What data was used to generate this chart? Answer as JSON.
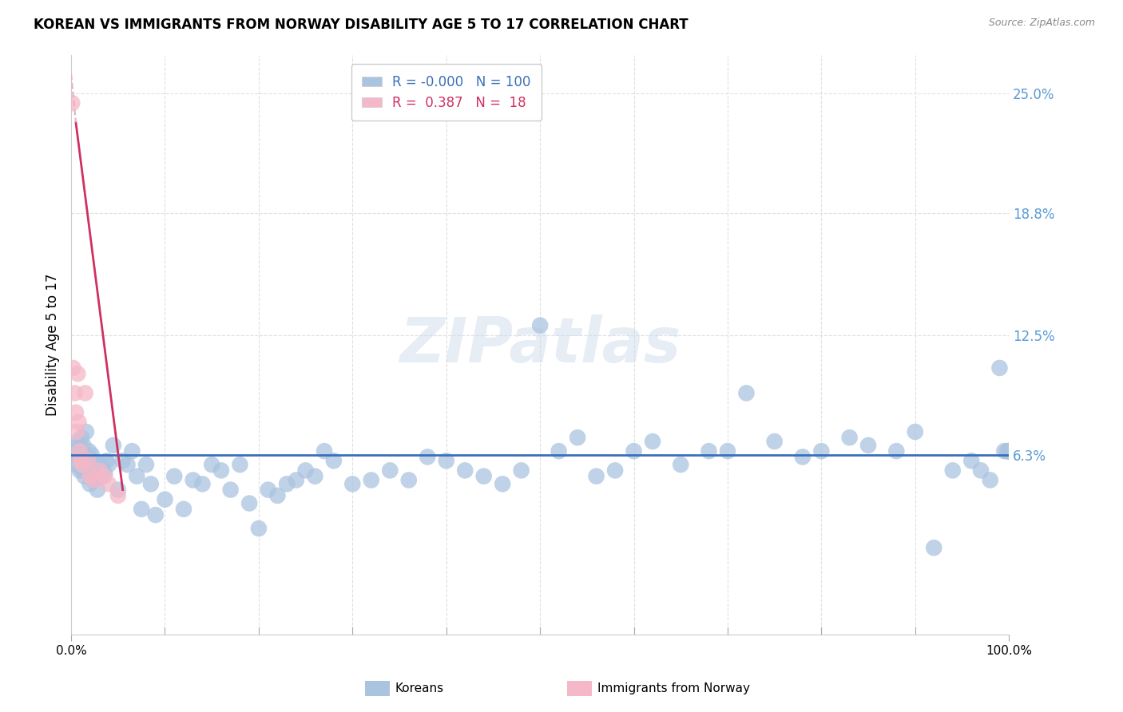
{
  "title": "KOREAN VS IMMIGRANTS FROM NORWAY DISABILITY AGE 5 TO 17 CORRELATION CHART",
  "source": "Source: ZipAtlas.com",
  "ylabel": "Disability Age 5 to 17",
  "xlim": [
    0,
    100
  ],
  "ylim": [
    -3,
    27
  ],
  "yticks": [
    6.3,
    12.5,
    18.8,
    25.0
  ],
  "yticklabels": [
    "6.3%",
    "12.5%",
    "18.8%",
    "25.0%"
  ],
  "blue_line_y": 6.3,
  "koreans_R": -0.0,
  "koreans_N": 100,
  "norway_R": 0.387,
  "norway_N": 18,
  "blue_color": "#aac4e0",
  "pink_color": "#f5b8c8",
  "blue_line_color": "#3a6fba",
  "pink_line_color": "#d03060",
  "pink_dash_color": "#e8b0c0",
  "background_color": "#ffffff",
  "grid_color": "#e0e0e0",
  "watermark": "ZIPatlas",
  "koreans_x": [
    0.3,
    0.5,
    0.6,
    0.7,
    0.8,
    0.9,
    1.0,
    1.1,
    1.2,
    1.3,
    1.4,
    1.5,
    1.6,
    1.7,
    1.8,
    1.9,
    2.0,
    2.1,
    2.2,
    2.4,
    2.6,
    2.8,
    3.0,
    3.2,
    3.4,
    3.6,
    3.8,
    4.0,
    4.5,
    5.0,
    5.5,
    6.0,
    6.5,
    7.0,
    7.5,
    8.0,
    8.5,
    9.0,
    10.0,
    11.0,
    12.0,
    13.0,
    14.0,
    15.0,
    16.0,
    17.0,
    18.0,
    19.0,
    20.0,
    21.0,
    22.0,
    23.0,
    24.0,
    25.0,
    26.0,
    27.0,
    28.0,
    30.0,
    32.0,
    34.0,
    36.0,
    38.0,
    40.0,
    42.0,
    44.0,
    46.0,
    48.0,
    50.0,
    52.0,
    54.0,
    56.0,
    58.0,
    60.0,
    62.0,
    65.0,
    68.0,
    70.0,
    72.0,
    75.0,
    78.0,
    80.0,
    83.0,
    85.0,
    88.0,
    90.0,
    92.0,
    94.0,
    96.0,
    97.0,
    98.0,
    99.0,
    99.5,
    99.8,
    100.0,
    100.0,
    100.0,
    100.0,
    100.0,
    100.0,
    100.0
  ],
  "koreans_y": [
    6.2,
    5.8,
    6.5,
    7.0,
    6.8,
    5.5,
    6.3,
    7.2,
    5.5,
    6.8,
    5.2,
    6.0,
    7.5,
    6.2,
    5.8,
    6.5,
    4.8,
    5.5,
    6.3,
    5.0,
    5.8,
    4.5,
    5.2,
    5.8,
    5.5,
    5.3,
    6.0,
    5.8,
    6.8,
    4.5,
    6.0,
    5.8,
    6.5,
    5.2,
    3.5,
    5.8,
    4.8,
    3.2,
    4.0,
    5.2,
    3.5,
    5.0,
    4.8,
    5.8,
    5.5,
    4.5,
    5.8,
    3.8,
    2.5,
    4.5,
    4.2,
    4.8,
    5.0,
    5.5,
    5.2,
    6.5,
    6.0,
    4.8,
    5.0,
    5.5,
    5.0,
    6.2,
    6.0,
    5.5,
    5.2,
    4.8,
    5.5,
    13.0,
    6.5,
    7.2,
    5.2,
    5.5,
    6.5,
    7.0,
    5.8,
    6.5,
    6.5,
    9.5,
    7.0,
    6.2,
    6.5,
    7.2,
    6.8,
    6.5,
    7.5,
    1.5,
    5.5,
    6.0,
    5.5,
    5.0,
    10.8,
    6.5,
    6.5,
    6.5,
    6.5,
    6.5,
    6.5,
    6.5,
    6.5,
    6.5
  ],
  "norway_x": [
    0.1,
    0.2,
    0.4,
    0.5,
    0.6,
    0.7,
    0.8,
    0.9,
    1.0,
    1.2,
    1.5,
    1.8,
    2.0,
    2.5,
    3.0,
    3.5,
    4.0,
    5.0
  ],
  "norway_y": [
    24.5,
    10.8,
    9.5,
    8.5,
    7.5,
    10.5,
    8.0,
    6.5,
    6.0,
    5.8,
    9.5,
    6.0,
    5.2,
    5.0,
    5.5,
    5.2,
    4.8,
    4.2
  ],
  "pink_line_x0": 0.0,
  "pink_line_y0": 26.0,
  "pink_line_x1": 5.5,
  "pink_line_y1": 4.5,
  "pink_solid_x0": 0.5,
  "pink_solid_y0": 23.5,
  "pink_solid_x1": 5.5,
  "pink_solid_y1": 4.5
}
